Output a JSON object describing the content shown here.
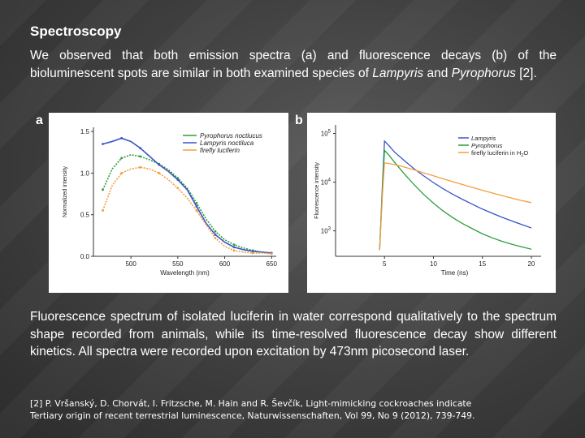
{
  "slide": {
    "title": "Spectroscopy",
    "intro_parts": [
      "We observed that both emission spectra (a) and fluorescence decays (b) of the bioluminescent spots are similar in both examined species of ",
      "Lampyris",
      " and ",
      "Pyrophorus",
      " [2]."
    ],
    "summary": "Fluorescence spectrum of isolated luciferin in water correspond qualitatively to the spectrum shape recorded from animals, while its time-resolved fluorescence decay show different kinetics. All spectra were recorded upon excitation by 473nm picosecond laser.",
    "reference_line1": "[2] P. Vršanský, D. Chorvát, I. Fritzsche, M. Hain and R. Ševčík, Light-mimicking cockroaches indicate",
    "reference_line2": "Tertiary origin of recent terrestrial luminescence, Naturwissenschaften, Vol 99, No 9 (2012), 739-749.",
    "panel_a_label": "a",
    "panel_b_label": "b"
  },
  "colors": {
    "pyrophorus": "#2e9e3a",
    "lampyris": "#3a55c8",
    "luciferin": "#f0a040"
  },
  "chart_data": [
    {
      "type": "line",
      "xlabel": "Wavelength (nm)",
      "ylabel": "Normalized intensity",
      "xlim": [
        460,
        655
      ],
      "ylim": [
        0,
        1.55
      ],
      "xticks": [
        "500",
        "550",
        "600",
        "650"
      ],
      "yticks": [
        "0.0",
        "0.5",
        "1.0",
        "1.5"
      ],
      "legend_position": "top-right",
      "x": [
        470,
        480,
        490,
        500,
        510,
        520,
        530,
        540,
        550,
        560,
        570,
        580,
        590,
        600,
        610,
        620,
        630,
        640,
        650
      ],
      "series": [
        {
          "name": "Pyrophorus noctiucus",
          "values": [
            0.8,
            1.05,
            1.18,
            1.22,
            1.2,
            1.16,
            1.11,
            1.04,
            0.94,
            0.82,
            0.64,
            0.45,
            0.3,
            0.2,
            0.14,
            0.1,
            0.07,
            0.05,
            0.04
          ]
        },
        {
          "name": "Lampyris noctiluca",
          "values": [
            1.35,
            1.38,
            1.42,
            1.38,
            1.3,
            1.2,
            1.1,
            1.02,
            0.92,
            0.8,
            0.6,
            0.4,
            0.26,
            0.17,
            0.11,
            0.08,
            0.06,
            0.05,
            0.04
          ]
        },
        {
          "name": "firefly luciferin",
          "values": [
            0.55,
            0.85,
            1.0,
            1.05,
            1.07,
            1.05,
            1.0,
            0.92,
            0.82,
            0.7,
            0.55,
            0.38,
            0.22,
            0.12,
            0.07,
            0.05,
            0.04,
            0.04,
            0.03
          ]
        }
      ]
    },
    {
      "type": "line",
      "xlabel": "Time (ns)",
      "ylabel": "Fluorescence intensity",
      "yscale": "log",
      "xlim": [
        0,
        21
      ],
      "ylim": [
        300,
        150000
      ],
      "xticks": [
        "5",
        "10",
        "15",
        "20"
      ],
      "yticks": [
        {
          "base": "10",
          "exp": "5",
          "value": 100000
        },
        {
          "base": "10",
          "exp": "4",
          "value": 10000
        },
        {
          "base": "10",
          "exp": "3",
          "value": 1000
        }
      ],
      "legend_position": "top-right",
      "x": [
        4.5,
        4.8,
        5.0,
        5.5,
        6,
        7,
        8,
        9,
        10,
        11,
        12,
        13,
        14,
        15,
        16,
        17,
        18,
        19,
        20
      ],
      "series": [
        {
          "name": "Lampyris",
          "values": [
            400,
            10000,
            70000,
            55000,
            42000,
            28000,
            19000,
            13500,
            9800,
            7300,
            5600,
            4400,
            3500,
            2800,
            2300,
            1900,
            1600,
            1350,
            1150
          ]
        },
        {
          "name": "Pyrophorus",
          "values": [
            400,
            8000,
            45000,
            35000,
            26000,
            15000,
            9000,
            5600,
            3700,
            2550,
            1850,
            1400,
            1100,
            870,
            720,
            610,
            530,
            470,
            420
          ]
        },
        {
          "name_parts": [
            "firefly luciferin in H",
            "2",
            "O"
          ],
          "values": [
            400,
            6000,
            25000,
            24000,
            23000,
            20500,
            18000,
            15500,
            13500,
            11700,
            10200,
            8900,
            7800,
            6800,
            6000,
            5300,
            4700,
            4200,
            3800
          ]
        }
      ]
    }
  ]
}
